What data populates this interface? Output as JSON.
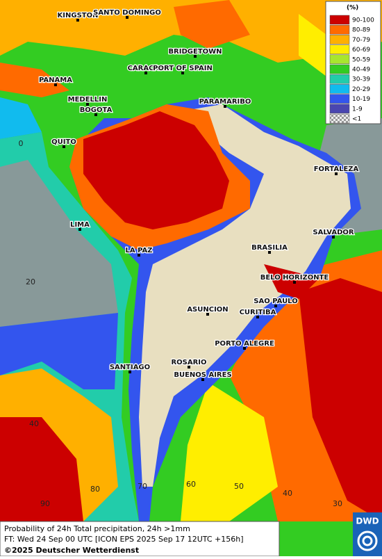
{
  "legend": {
    "title": "(%)",
    "items": [
      {
        "label": "90-100",
        "color": "#cc0000"
      },
      {
        "label": "80-89",
        "color": "#ff6a00"
      },
      {
        "label": "70-79",
        "color": "#ffb000"
      },
      {
        "label": "60-69",
        "color": "#ffee00"
      },
      {
        "label": "50-59",
        "color": "#a8e62e"
      },
      {
        "label": "40-49",
        "color": "#33cc22"
      },
      {
        "label": "30-39",
        "color": "#22ccaa"
      },
      {
        "label": "20-29",
        "color": "#11bbee"
      },
      {
        "label": "10-19",
        "color": "#3355ee"
      },
      {
        "label": "1-9",
        "color": "#4a46b0"
      },
      {
        "label": "<1",
        "color": "#bbbbbb"
      }
    ]
  },
  "cities": [
    "KINGSTON",
    "SANTO DOMINGO",
    "BRIDGETOWN",
    "CARACAS",
    "PORT OF SPAIN",
    "PANAMA",
    "MEDELLIN",
    "BOGOTA",
    "PARAMARIBO",
    "QUITO",
    "FORTALEZA",
    "LIMA",
    "SALVADOR",
    "LA PAZ",
    "BRASILIA",
    "BELO HORIZONTE",
    "ASUNCION",
    "SAO PAULO",
    "CURITIBA",
    "PORTO ALEGRE",
    "SANTIAGO",
    "ROSARIO",
    "BUENOS AIRES"
  ],
  "grid_labels": [
    0,
    20,
    40,
    90,
    80,
    70,
    60,
    50,
    40,
    30
  ],
  "footer": {
    "line1": "Probability of 24h Total precipitation, 24h >1mm",
    "line2": "FT: Wed 24 Sep 00 UTC [ICON EPS 2025 Sep 17 12UTC +156h]",
    "line3": "©2025 Deutscher Wetterdienst"
  },
  "logo": "DWD"
}
